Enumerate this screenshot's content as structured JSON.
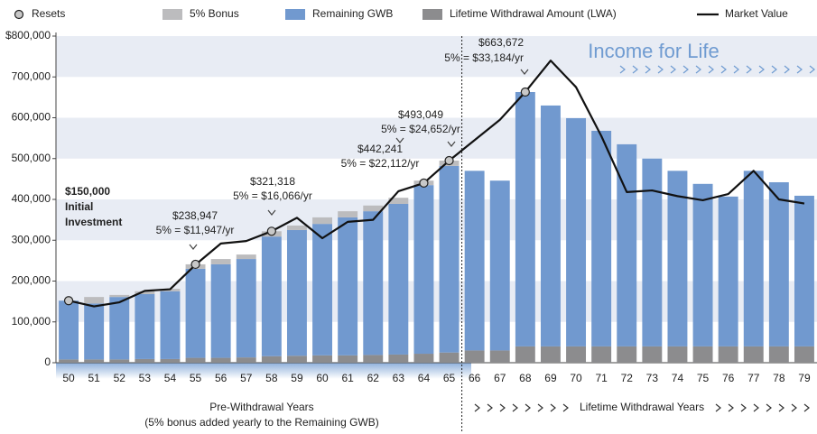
{
  "chart_data": {
    "type": "bar",
    "categories": [
      "50",
      "51",
      "52",
      "53",
      "54",
      "55",
      "56",
      "57",
      "58",
      "59",
      "60",
      "61",
      "62",
      "63",
      "64",
      "65",
      "66",
      "67",
      "68",
      "69",
      "70",
      "71",
      "72",
      "73",
      "74",
      "75",
      "76",
      "77",
      "78",
      "79"
    ],
    "series": [
      {
        "name": "Lifetime Withdrawal Amount (LWA)",
        "color": "#8c8c8e",
        "values": [
          8000,
          8000,
          8000,
          9000,
          9000,
          12000,
          12000,
          13000,
          16000,
          17000,
          18000,
          18000,
          19000,
          20000,
          22000,
          25000,
          30000,
          30000,
          40000,
          40000,
          40000,
          40000,
          40000,
          40000,
          40000,
          40000,
          40000,
          40000,
          40000,
          40000
        ]
      },
      {
        "name": "Remaining GWB",
        "color": "#7199cf",
        "values": [
          144000,
          137000,
          153000,
          159000,
          166000,
          218000,
          229000,
          241000,
          293000,
          308000,
          322000,
          338000,
          352000,
          369000,
          413000,
          457000,
          440000,
          416000,
          623000,
          590000,
          559000,
          528000,
          495000,
          460000,
          430000,
          398000,
          367000,
          430000,
          402000,
          369000
        ]
      },
      {
        "name": "5% Bonus",
        "color": "#bcbcbe",
        "values": [
          null,
          16000,
          5000,
          7000,
          6000,
          11000,
          13000,
          11000,
          13000,
          11000,
          16000,
          15000,
          14000,
          15000,
          11000,
          13000,
          null,
          null,
          null,
          null,
          null,
          null,
          null,
          null,
          null,
          null,
          null,
          null,
          null,
          null
        ]
      },
      {
        "name": "Market Value",
        "type": "line",
        "color": "#111111",
        "values": [
          152000,
          138000,
          148000,
          176000,
          180000,
          240000,
          292000,
          298000,
          322000,
          355000,
          305000,
          345000,
          350000,
          420000,
          440000,
          495000,
          545000,
          595000,
          663000,
          740000,
          675000,
          555000,
          418000,
          422000,
          408000,
          398000,
          413000,
          470000,
          400000,
          390000
        ]
      },
      {
        "name": "Resets",
        "type": "scatter",
        "color": "#c8c8c8",
        "values": [
          152000,
          null,
          null,
          null,
          null,
          241000,
          null,
          null,
          322000,
          null,
          null,
          null,
          null,
          null,
          440000,
          495000,
          null,
          null,
          663000,
          null,
          null,
          null,
          null,
          null,
          null,
          null,
          null,
          null,
          null,
          null
        ]
      }
    ],
    "ylim": [
      0,
      800000
    ],
    "yticks": [
      0,
      {
        "value": 100000,
        "label": "100,000"
      },
      {
        "value": 200000,
        "label": "200,000"
      },
      {
        "value": 300000,
        "label": "300,000"
      },
      {
        "value": 400000,
        "label": "400,000"
      },
      {
        "value": 500000,
        "label": "500,000"
      },
      {
        "value": 600000,
        "label": "600,000"
      },
      {
        "value": 700000,
        "label": "700,000"
      },
      {
        "value": 800000,
        "label": "$800,000"
      }
    ],
    "grid": "bands",
    "annotations": [
      {
        "lines": [
          "$150,000",
          "Initial",
          "Investment"
        ]
      },
      {
        "lines": [
          "$238,947",
          "5% = $11,947/yr"
        ]
      },
      {
        "lines": [
          "$321,318",
          "5% = $16,066/yr"
        ]
      },
      {
        "lines": [
          "$442,241",
          "5% = $22,112/yr"
        ]
      },
      {
        "lines": [
          "$493,049",
          "5% = $24,652/yr"
        ]
      },
      {
        "lines": [
          "$663,672",
          "5% = $33,184/yr"
        ]
      }
    ],
    "income_label": "Income for Life",
    "sections": [
      {
        "label": "Pre-Withdrawal Years",
        "note": "(5% bonus added yearly to the Remaining GWB)"
      },
      {
        "label": "Lifetime Withdrawal Years"
      }
    ]
  }
}
